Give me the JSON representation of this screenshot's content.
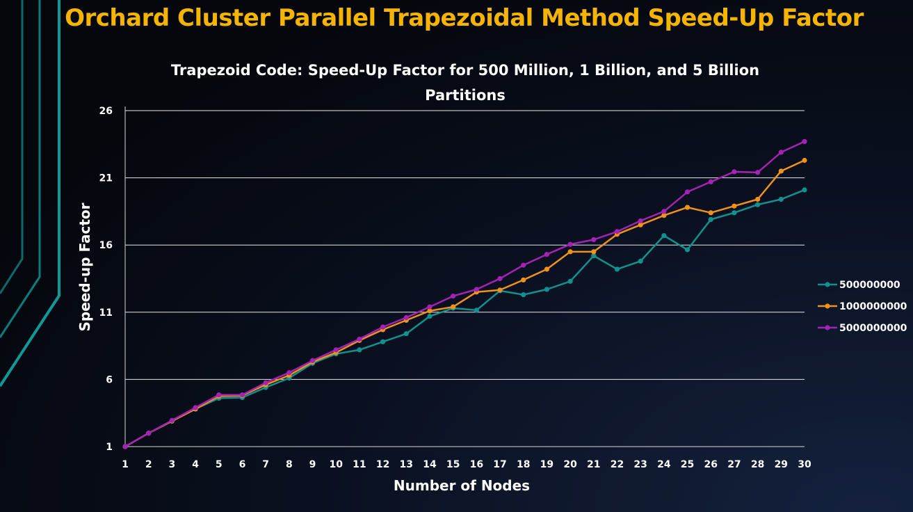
{
  "slide": {
    "title": "Orchard Cluster Parallel Trapezoidal Method Speed-Up Factor"
  },
  "chart_data": {
    "type": "line",
    "title_lines": [
      "Trapezoid Code: Speed-Up Factor for 500 Million, 1 Billion, and 5 Billion",
      "Partitions"
    ],
    "xlabel": "Number of Nodes",
    "ylabel": "Speed-up Factor",
    "x": [
      1,
      2,
      3,
      4,
      5,
      6,
      7,
      8,
      9,
      10,
      11,
      12,
      13,
      14,
      15,
      16,
      17,
      18,
      19,
      20,
      21,
      22,
      23,
      24,
      25,
      26,
      27,
      28,
      29,
      30
    ],
    "ylim": [
      1,
      26
    ],
    "yticks": [
      1,
      6,
      11,
      16,
      21,
      26
    ],
    "grid": true,
    "legend_position": "right",
    "series": [
      {
        "name": "500000000",
        "color": "#12928f",
        "values": [
          1.0,
          2.0,
          2.9,
          3.8,
          4.6,
          4.65,
          5.4,
          6.1,
          7.2,
          7.9,
          8.2,
          8.8,
          9.4,
          10.7,
          11.3,
          11.15,
          12.6,
          12.3,
          12.7,
          13.3,
          15.2,
          14.2,
          14.8,
          16.7,
          15.65,
          17.9,
          18.4,
          19.0,
          19.4,
          20.1
        ]
      },
      {
        "name": "1000000000",
        "color": "#f0921c",
        "values": [
          1.0,
          2.0,
          2.9,
          3.8,
          4.75,
          4.8,
          5.6,
          6.3,
          7.3,
          8.0,
          8.9,
          9.7,
          10.4,
          11.1,
          11.4,
          12.5,
          12.65,
          13.4,
          14.2,
          15.5,
          15.5,
          16.8,
          17.5,
          18.2,
          18.8,
          18.4,
          18.9,
          19.4,
          21.5,
          22.3
        ]
      },
      {
        "name": "5000000000",
        "color": "#a523b4",
        "values": [
          1.0,
          2.0,
          2.95,
          3.9,
          4.85,
          4.85,
          5.75,
          6.5,
          7.4,
          8.2,
          9.0,
          9.9,
          10.6,
          11.4,
          12.2,
          12.7,
          13.5,
          14.5,
          15.3,
          16.05,
          16.4,
          17.0,
          17.8,
          18.5,
          19.95,
          20.7,
          21.45,
          21.4,
          22.9,
          23.7
        ]
      }
    ]
  }
}
